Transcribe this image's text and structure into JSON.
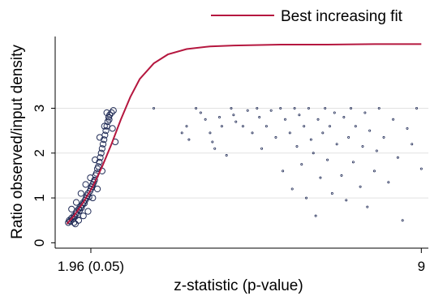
{
  "chart_data": {
    "type": "scatter",
    "title": "",
    "xlabel": "z-statistic (p-value)",
    "ylabel": "Ratio observed/input density",
    "xlim": [
      1.2,
      9.15
    ],
    "ylim": [
      -0.12,
      4.6
    ],
    "x_ticks": [
      {
        "value": 1.96,
        "label": "1.96 (0.05)"
      },
      {
        "value": 9,
        "label": "9"
      }
    ],
    "y_ticks": [
      {
        "value": 0,
        "label": "0"
      },
      {
        "value": 1,
        "label": "1"
      },
      {
        "value": 2,
        "label": "2"
      },
      {
        "value": 3,
        "label": "3"
      }
    ],
    "grid": "horizontal",
    "legend": {
      "position": "top-right",
      "entries": [
        {
          "label": "Best increasing fit",
          "color": "#b5173f",
          "kind": "line"
        }
      ]
    },
    "colors": {
      "fit": "#b5173f",
      "points": "#1f2a55",
      "grid": "#e2e2e2"
    },
    "series": [
      {
        "kind": "points",
        "points": [
          [
            1.48,
            0.45
          ],
          [
            1.5,
            0.5
          ],
          [
            1.52,
            0.48
          ],
          [
            1.55,
            0.55
          ],
          [
            1.57,
            0.52
          ],
          [
            1.6,
            0.6
          ],
          [
            1.62,
            0.58
          ],
          [
            1.63,
            0.42
          ],
          [
            1.65,
            0.65
          ],
          [
            1.66,
            0.7
          ],
          [
            1.68,
            0.62
          ],
          [
            1.7,
            0.75
          ],
          [
            1.72,
            0.72
          ],
          [
            1.74,
            0.8
          ],
          [
            1.76,
            0.78
          ],
          [
            1.78,
            0.85
          ],
          [
            1.8,
            0.9
          ],
          [
            1.82,
            0.88
          ],
          [
            1.84,
            0.95
          ],
          [
            1.86,
            1.0
          ],
          [
            1.88,
            1.05
          ],
          [
            1.9,
            1.1
          ],
          [
            1.92,
            1.02
          ],
          [
            1.94,
            1.15
          ],
          [
            1.96,
            1.2
          ],
          [
            1.98,
            1.25
          ],
          [
            2.0,
            1.3
          ],
          [
            2.02,
            1.35
          ],
          [
            2.04,
            1.4
          ],
          [
            2.06,
            1.5
          ],
          [
            2.08,
            1.55
          ],
          [
            2.1,
            1.65
          ],
          [
            2.12,
            1.7
          ],
          [
            2.14,
            1.8
          ],
          [
            2.16,
            1.9
          ],
          [
            2.18,
            2.0
          ],
          [
            2.2,
            2.1
          ],
          [
            2.22,
            2.2
          ],
          [
            2.24,
            2.3
          ],
          [
            2.26,
            2.4
          ],
          [
            2.28,
            2.5
          ],
          [
            2.3,
            2.6
          ],
          [
            2.32,
            2.7
          ],
          [
            2.34,
            2.8
          ],
          [
            2.36,
            2.85
          ],
          [
            2.4,
            2.9
          ],
          [
            2.44,
            2.95
          ],
          [
            2.48,
            2.25
          ],
          [
            2.3,
            2.9
          ],
          [
            2.2,
            1.6
          ],
          [
            2.1,
            1.2
          ],
          [
            2.0,
            1.0
          ],
          [
            1.9,
            0.7
          ],
          [
            1.8,
            0.6
          ],
          [
            1.7,
            0.5
          ],
          [
            1.6,
            0.45
          ],
          [
            1.55,
            0.75
          ],
          [
            1.65,
            0.9
          ],
          [
            1.75,
            1.1
          ],
          [
            1.85,
            1.3
          ],
          [
            1.95,
            1.45
          ],
          [
            2.05,
            1.85
          ],
          [
            2.15,
            2.35
          ],
          [
            2.25,
            2.6
          ],
          [
            2.35,
            2.75
          ],
          [
            2.42,
            2.55
          ]
        ]
      },
      {
        "kind": "small-points",
        "points": [
          [
            3.3,
            3.0
          ],
          [
            3.9,
            2.45
          ],
          [
            4.0,
            2.6
          ],
          [
            4.05,
            2.3
          ],
          [
            4.2,
            3.0
          ],
          [
            4.3,
            2.9
          ],
          [
            4.4,
            2.75
          ],
          [
            4.5,
            2.45
          ],
          [
            4.55,
            2.25
          ],
          [
            4.6,
            2.1
          ],
          [
            4.7,
            2.8
          ],
          [
            4.75,
            2.6
          ],
          [
            4.85,
            1.95
          ],
          [
            4.95,
            3.0
          ],
          [
            5.0,
            2.85
          ],
          [
            5.05,
            2.7
          ],
          [
            5.2,
            2.6
          ],
          [
            5.3,
            2.95
          ],
          [
            5.4,
            2.45
          ],
          [
            5.5,
            3.0
          ],
          [
            5.55,
            2.8
          ],
          [
            5.6,
            2.1
          ],
          [
            5.7,
            2.6
          ],
          [
            5.8,
            2.95
          ],
          [
            5.9,
            2.35
          ],
          [
            6.0,
            3.0
          ],
          [
            6.05,
            1.6
          ],
          [
            6.1,
            2.75
          ],
          [
            6.2,
            2.45
          ],
          [
            6.25,
            1.2
          ],
          [
            6.3,
            3.0
          ],
          [
            6.35,
            2.15
          ],
          [
            6.4,
            2.85
          ],
          [
            6.45,
            1.75
          ],
          [
            6.5,
            2.6
          ],
          [
            6.55,
            1.0
          ],
          [
            6.6,
            3.0
          ],
          [
            6.65,
            2.3
          ],
          [
            6.7,
            2.0
          ],
          [
            6.75,
            0.6
          ],
          [
            6.8,
            2.75
          ],
          [
            6.85,
            1.45
          ],
          [
            6.9,
            2.45
          ],
          [
            6.95,
            3.0
          ],
          [
            7.0,
            1.85
          ],
          [
            7.05,
            2.6
          ],
          [
            7.1,
            1.1
          ],
          [
            7.15,
            2.9
          ],
          [
            7.2,
            2.2
          ],
          [
            7.3,
            1.5
          ],
          [
            7.35,
            2.8
          ],
          [
            7.4,
            0.95
          ],
          [
            7.45,
            2.35
          ],
          [
            7.5,
            3.0
          ],
          [
            7.55,
            1.8
          ],
          [
            7.6,
            2.6
          ],
          [
            7.7,
            1.25
          ],
          [
            7.75,
            2.15
          ],
          [
            7.8,
            2.9
          ],
          [
            7.85,
            0.8
          ],
          [
            7.9,
            2.5
          ],
          [
            8.0,
            1.6
          ],
          [
            8.05,
            2.05
          ],
          [
            8.1,
            3.0
          ],
          [
            8.2,
            2.35
          ],
          [
            8.3,
            1.35
          ],
          [
            8.4,
            2.75
          ],
          [
            8.5,
            1.9
          ],
          [
            8.6,
            0.5
          ],
          [
            8.7,
            2.55
          ],
          [
            8.8,
            2.2
          ],
          [
            8.9,
            3.0
          ],
          [
            9.0,
            1.65
          ]
        ]
      },
      {
        "name": "Best increasing fit",
        "kind": "line",
        "x": [
          1.45,
          1.6,
          1.8,
          2.0,
          2.2,
          2.4,
          2.6,
          2.8,
          3.0,
          3.3,
          3.6,
          4.0,
          4.5,
          5.0,
          6.0,
          7.0,
          8.0,
          9.0
        ],
        "y": [
          0.42,
          0.6,
          0.9,
          1.25,
          1.7,
          2.2,
          2.75,
          3.25,
          3.65,
          4.0,
          4.2,
          4.32,
          4.38,
          4.4,
          4.42,
          4.42,
          4.43,
          4.43
        ]
      }
    ]
  }
}
